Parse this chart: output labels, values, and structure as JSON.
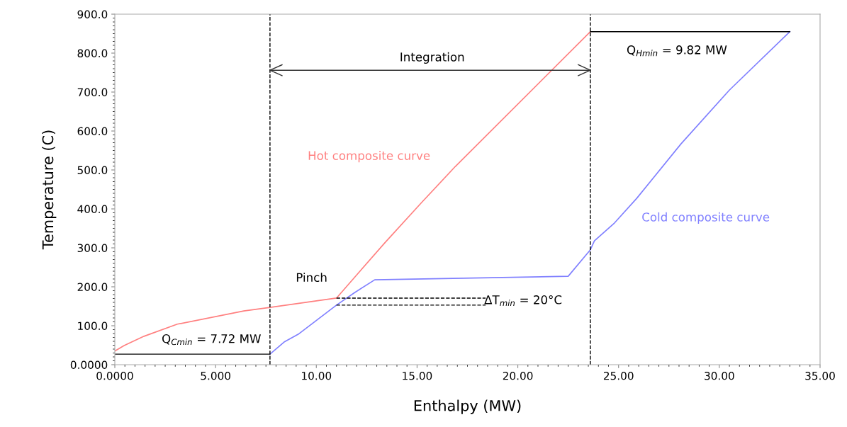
{
  "chart_data": {
    "type": "line",
    "xlabel": "Enthalpy (MW)",
    "ylabel": "Temperature (C)",
    "xlim": [
      0,
      35
    ],
    "ylim": [
      0,
      900
    ],
    "xticks": [
      {
        "value": 0,
        "label": "0.0000"
      },
      {
        "value": 5,
        "label": "5.000"
      },
      {
        "value": 10,
        "label": "10.00"
      },
      {
        "value": 15,
        "label": "15.00"
      },
      {
        "value": 20,
        "label": "20.00"
      },
      {
        "value": 25,
        "label": "25.00"
      },
      {
        "value": 30,
        "label": "30.00"
      },
      {
        "value": 35,
        "label": "35.00"
      }
    ],
    "yticks": [
      {
        "value": 0,
        "label": "0.0000"
      },
      {
        "value": 100,
        "label": "100.0"
      },
      {
        "value": 200,
        "label": "200.0"
      },
      {
        "value": 300,
        "label": "300.0"
      },
      {
        "value": 400,
        "label": "400.0"
      },
      {
        "value": 500,
        "label": "500.0"
      },
      {
        "value": 600,
        "label": "600.0"
      },
      {
        "value": 700,
        "label": "700.0"
      },
      {
        "value": 800,
        "label": "800.0"
      },
      {
        "value": 900,
        "label": "900.0"
      }
    ],
    "grid": false,
    "legend": false,
    "series": [
      {
        "name": "Hot composite curve",
        "color": "#ff8080",
        "x": [
          0,
          0.46,
          1.45,
          3.1,
          6.4,
          7.7,
          11.0,
          13.4,
          15.2,
          16.9,
          23.6
        ],
        "values": [
          35,
          49,
          73,
          104,
          138,
          147,
          171,
          313,
          415,
          509,
          855
        ]
      },
      {
        "name": "Cold composite curve",
        "color": "#8080ff",
        "x": [
          7.7,
          8.4,
          9.1,
          11.0,
          11.9,
          12.9,
          22.5,
          23.6,
          23.8,
          24.8,
          25.9,
          28.1,
          30.5,
          33.5
        ],
        "values": [
          27,
          58,
          78,
          153,
          185,
          218,
          227,
          295,
          318,
          364,
          427,
          567,
          705,
          855
        ]
      },
      {
        "color": "#000000",
        "x": [
          0,
          7.7
        ],
        "values": [
          27,
          27
        ]
      },
      {
        "color": "#000000",
        "x": [
          23.6,
          33.5
        ],
        "values": [
          855,
          855
        ]
      },
      {
        "color": "#000000",
        "line_style": "dashed",
        "x": [
          11.0,
          18.4
        ],
        "values": [
          171,
          171
        ]
      },
      {
        "color": "#000000",
        "line_style": "dashed",
        "x": [
          11.0,
          18.4
        ],
        "values": [
          153,
          153
        ]
      },
      {
        "color": "#333333",
        "x": [
          7.7,
          23.6
        ],
        "values": [
          756,
          756
        ]
      }
    ],
    "ref_lines": [
      {
        "axis": "x",
        "value": 7.7,
        "color": "#000000",
        "line_style": "dashed"
      },
      {
        "axis": "x",
        "value": 23.6,
        "color": "#000000",
        "line_style": "dashed"
      }
    ],
    "annotations": [
      "Integration",
      "Pinch",
      "Q$_{Cmin}$ = 7.72 MW",
      "Q$_{Hmin}$ = 9.82 MW",
      "ΔT$_{min}$ = 20°C"
    ]
  }
}
